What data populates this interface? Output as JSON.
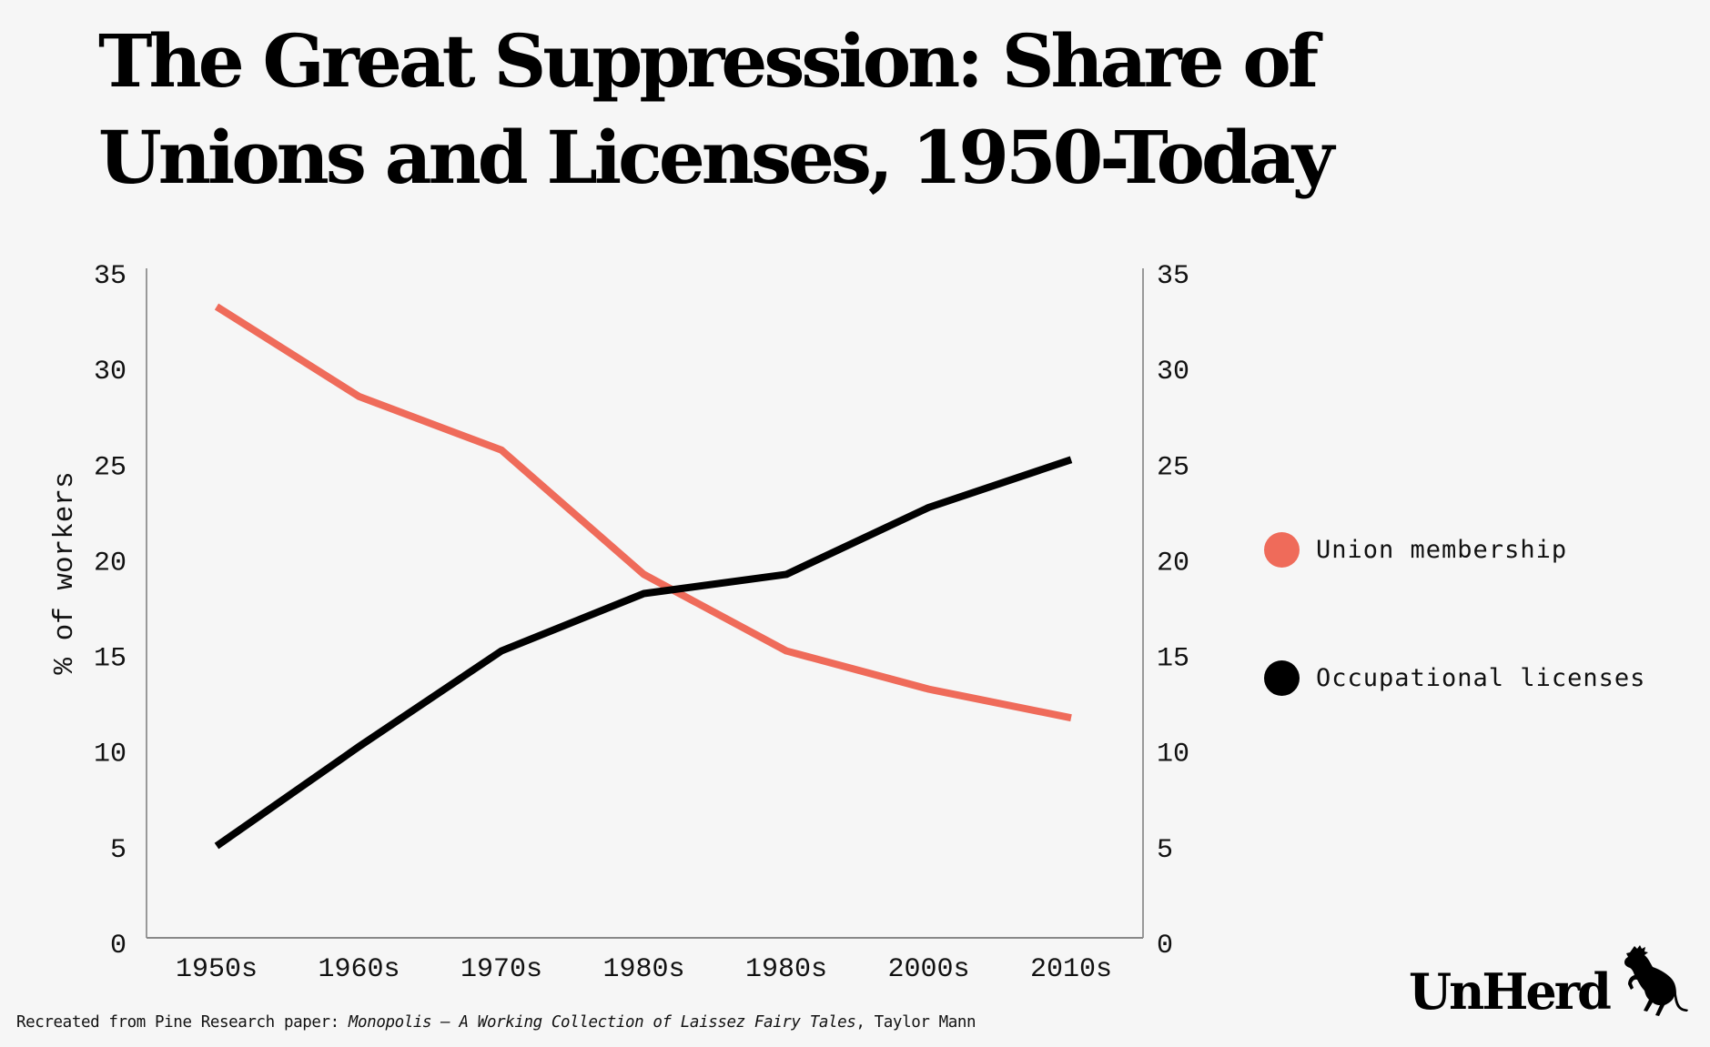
{
  "title": {
    "line1": "The Great Suppression: Share of",
    "line2": "Unions and Licenses, 1950-Today"
  },
  "source": {
    "prefix": "Recreated from Pine Research paper: ",
    "work": "Monopolis – A Working Collection of Laissez Fairy Tales",
    "suffix": ", Taylor Mann"
  },
  "logo": {
    "text": "UnHerd",
    "icon": "cow-icon"
  },
  "colors": {
    "background": "#f6f6f6",
    "union": "#ef6b5a",
    "licenses": "#000000",
    "axis": "#999999"
  },
  "chart_data": {
    "type": "line",
    "title": "The Great Suppression: Share of Unions and Licenses, 1950-Today",
    "xlabel": "",
    "ylabel": "% of workers",
    "ylim": [
      0,
      35
    ],
    "yticks": [
      0,
      5,
      10,
      15,
      20,
      25,
      30,
      35
    ],
    "secondary_yticks": [
      0,
      5,
      10,
      15,
      20,
      25,
      30,
      35
    ],
    "grid": false,
    "legend_position": "right",
    "categories": [
      "1950s",
      "1960s",
      "1970s",
      "1980s",
      "1980s",
      "2000s",
      "2010s"
    ],
    "series": [
      {
        "name": "Union membership",
        "color": "#ef6b5a",
        "values": [
          33,
          28.3,
          25.5,
          19,
          15,
          13,
          11.5
        ]
      },
      {
        "name": "Occupational licenses",
        "color": "#000000",
        "values": [
          4.8,
          10,
          15,
          18,
          19,
          22.5,
          25
        ]
      }
    ]
  }
}
